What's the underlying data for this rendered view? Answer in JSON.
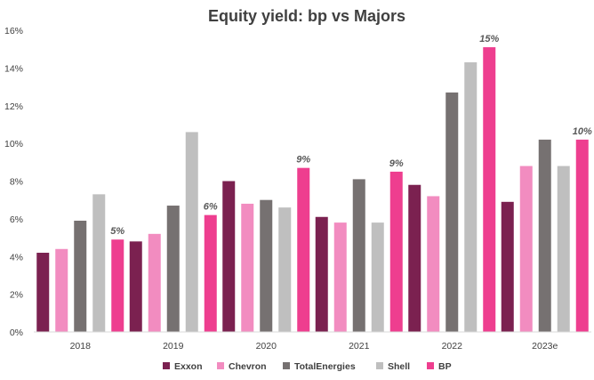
{
  "chart_data": {
    "type": "bar",
    "title": "Equity yield: bp vs Majors",
    "xlabel": "",
    "ylabel": "",
    "ylim": [
      0,
      16
    ],
    "ytick_labels": [
      "0%",
      "2%",
      "4%",
      "6%",
      "8%",
      "10%",
      "12%",
      "14%",
      "16%"
    ],
    "y_unit": "%",
    "grid": false,
    "legend_position": "bottom",
    "categories": [
      "2018",
      "2019",
      "2020",
      "2021",
      "2022",
      "2023e"
    ],
    "series": [
      {
        "name": "Exxon",
        "color": "#7b2150",
        "values": [
          4.2,
          4.8,
          8.0,
          6.1,
          7.8,
          6.9
        ]
      },
      {
        "name": "Chevron",
        "color": "#f28cc0",
        "values": [
          4.4,
          5.2,
          6.8,
          5.8,
          7.2,
          8.8
        ]
      },
      {
        "name": "TotalEnergies",
        "color": "#767171",
        "values": [
          5.9,
          6.7,
          7.0,
          8.1,
          12.7,
          10.2
        ]
      },
      {
        "name": "Shell",
        "color": "#bfbfbf",
        "values": [
          7.3,
          10.6,
          6.6,
          5.8,
          14.3,
          8.8
        ]
      },
      {
        "name": "BP",
        "color": "#ee3e8f",
        "values": [
          4.9,
          6.2,
          8.7,
          8.5,
          15.1,
          10.2
        ]
      }
    ],
    "data_labels": {
      "series": "BP",
      "labels": [
        "5%",
        "6%",
        "9%",
        "9%",
        "15%",
        "10%"
      ]
    }
  }
}
